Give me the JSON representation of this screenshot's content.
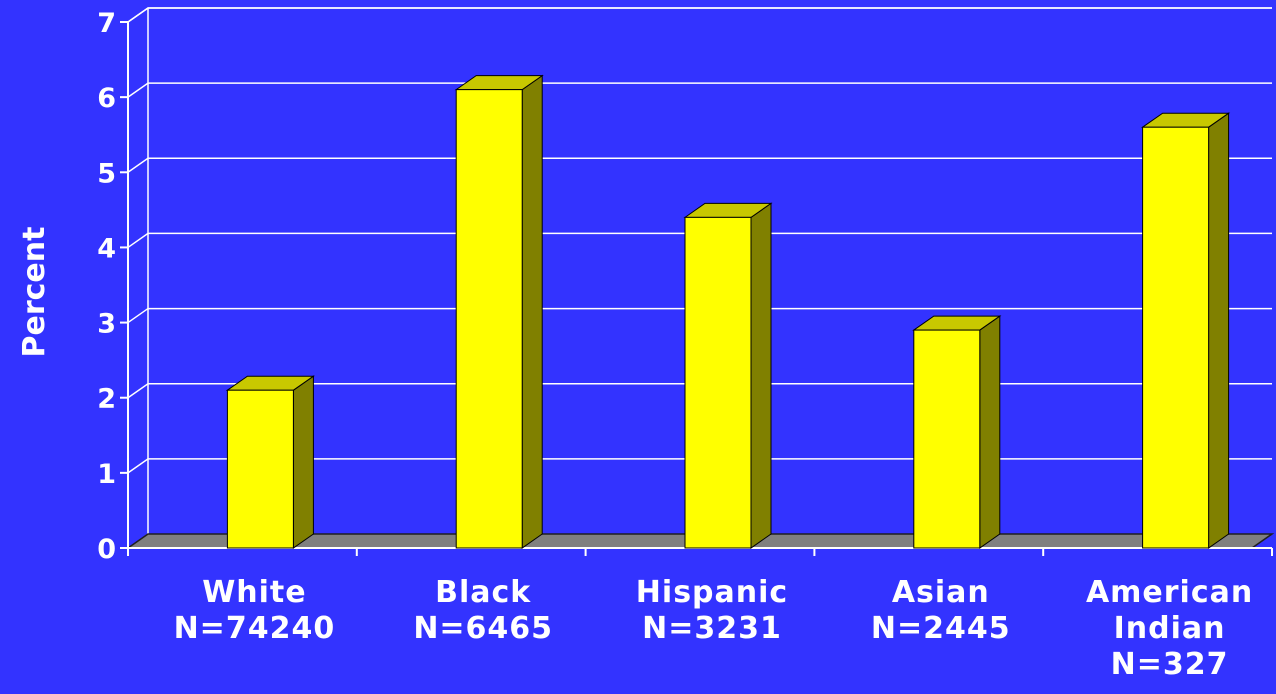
{
  "chart_data": {
    "type": "bar",
    "categories": [
      [
        "White",
        "N=74240"
      ],
      [
        "Black",
        "N=6465"
      ],
      [
        "Hispanic",
        "N=3231"
      ],
      [
        "Asian",
        "N=2445"
      ],
      [
        "American",
        "Indian",
        "N=327"
      ]
    ],
    "values": [
      2.1,
      6.1,
      4.4,
      2.9,
      5.6
    ],
    "ylabel": "Percent",
    "ylim": [
      0,
      7
    ],
    "yticks": [
      "0",
      "1",
      "2",
      "3",
      "4",
      "5",
      "6",
      "7"
    ],
    "grid": true,
    "legend": "none",
    "three_d": true
  },
  "colors": {
    "background": "#3333ff",
    "bar_front": "#ffff00",
    "bar_top": "#c8c800",
    "bar_side": "#808000",
    "floor": "#808080",
    "gridline": "#ffffff",
    "text": "#ffffff"
  }
}
